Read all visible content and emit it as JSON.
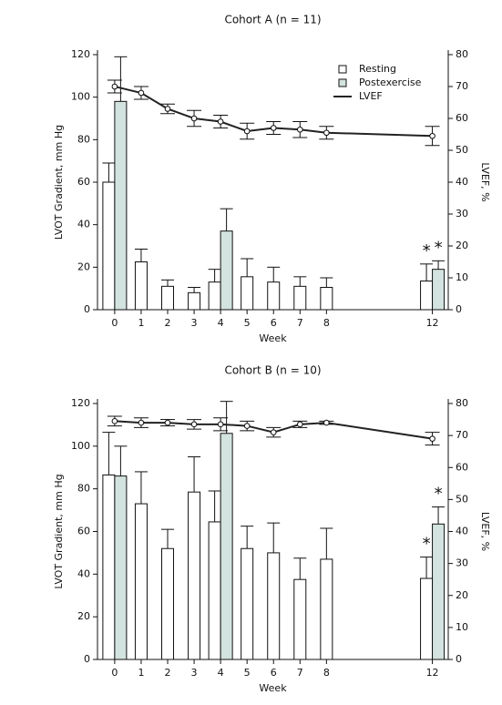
{
  "chart_data": [
    {
      "type": "bar",
      "title": "Cohort A (n = 11)",
      "xlabel": "Week",
      "ylabel": "LVOT Gradient, mm Hg",
      "y2label": "LVEF, %",
      "x": [
        0,
        1,
        2,
        3,
        4,
        5,
        6,
        7,
        8,
        12
      ],
      "xlim": [
        -0.65,
        12.6
      ],
      "xticks": [
        0,
        1,
        2,
        3,
        4,
        5,
        6,
        7,
        8,
        12
      ],
      "ylim": [
        0,
        120
      ],
      "yticks": [
        0,
        20,
        40,
        60,
        80,
        100,
        120
      ],
      "y2lim": [
        0,
        80
      ],
      "y2ticks": [
        0,
        10,
        20,
        30,
        40,
        50,
        60,
        70,
        80
      ],
      "legend": "upper right",
      "series": [
        {
          "name": "Resting",
          "type": "bar",
          "color": "#ffffff",
          "values": [
            60,
            22.5,
            11,
            8,
            13,
            15.5,
            13,
            11,
            10.5,
            13.5
          ],
          "errors": [
            9,
            6,
            3,
            2.5,
            6,
            8.5,
            7,
            4.5,
            4.5,
            8
          ]
        },
        {
          "name": "Postexercise",
          "type": "bar",
          "color": "#d3e3df",
          "values": [
            98,
            null,
            null,
            null,
            37,
            null,
            null,
            null,
            null,
            19
          ],
          "errors": [
            21,
            null,
            null,
            null,
            10.5,
            null,
            null,
            null,
            null,
            4
          ]
        },
        {
          "name": "LVEF",
          "type": "line",
          "axis": "y2",
          "color": "#222222",
          "values": [
            70,
            68,
            63,
            60,
            59,
            56,
            57,
            56.5,
            55.5,
            54.5
          ],
          "errors": [
            2,
            2,
            1.5,
            2.5,
            2,
            2.5,
            2,
            2.5,
            2,
            3
          ]
        }
      ],
      "annotations": [
        {
          "text": "*",
          "x": 12,
          "series": "Resting"
        },
        {
          "text": "*",
          "x": 12,
          "series": "Postexercise"
        }
      ]
    },
    {
      "type": "bar",
      "title": "Cohort B (n = 10)",
      "xlabel": "Week",
      "ylabel": "LVOT Gradient, mm Hg",
      "y2label": "LVEF, %",
      "x": [
        0,
        1,
        2,
        3,
        4,
        5,
        6,
        7,
        8,
        12
      ],
      "xlim": [
        -0.65,
        12.6
      ],
      "xticks": [
        0,
        1,
        2,
        3,
        4,
        5,
        6,
        7,
        8,
        12
      ],
      "ylim": [
        0,
        120
      ],
      "yticks": [
        0,
        20,
        40,
        60,
        80,
        100,
        120
      ],
      "y2lim": [
        0,
        80
      ],
      "y2ticks": [
        0,
        10,
        20,
        30,
        40,
        50,
        60,
        70,
        80
      ],
      "legend": false,
      "series": [
        {
          "name": "Resting",
          "type": "bar",
          "color": "#ffffff",
          "values": [
            86.5,
            73,
            52,
            78.5,
            64.5,
            52,
            50,
            37.5,
            47,
            38
          ],
          "errors": [
            20,
            15,
            9,
            16.5,
            14.5,
            10.5,
            14,
            10,
            14.5,
            10
          ]
        },
        {
          "name": "Postexercise",
          "type": "bar",
          "color": "#d3e3df",
          "values": [
            86,
            null,
            null,
            null,
            106,
            null,
            null,
            null,
            null,
            63.5
          ],
          "errors": [
            14,
            null,
            null,
            null,
            15,
            null,
            null,
            null,
            null,
            8
          ]
        },
        {
          "name": "LVEF",
          "type": "line",
          "axis": "y2",
          "color": "#222222",
          "values": [
            74.5,
            74,
            74,
            73.5,
            73.5,
            73,
            71,
            73.5,
            74,
            69
          ],
          "errors": [
            1.5,
            1.5,
            1,
            1.5,
            2,
            1.5,
            1.5,
            1,
            0.5,
            2
          ]
        }
      ],
      "annotations": [
        {
          "text": "*",
          "x": 12,
          "series": "Resting"
        },
        {
          "text": "*",
          "x": 12,
          "series": "Postexercise"
        }
      ]
    }
  ]
}
